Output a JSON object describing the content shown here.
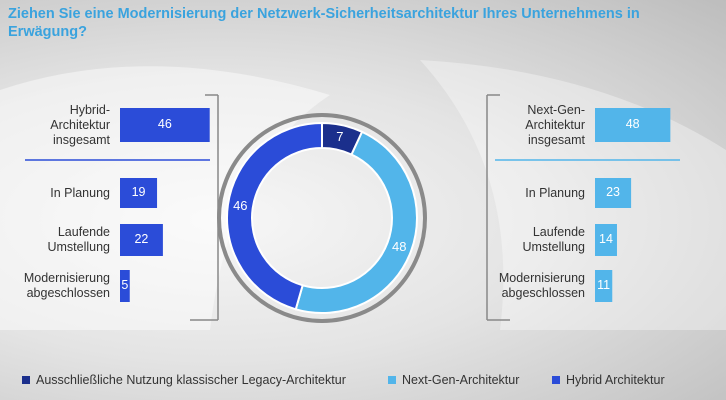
{
  "title": "Ziehen Sie eine Modernisierung der Netzwerk-Sicherheitsarchitektur Ihres Unternehmens in Erwägung?",
  "chart_data": [
    {
      "type": "pie",
      "categories": [
        "Ausschließliche Nutzung klassischer Legacy-Architektur",
        "Next-Gen-Architektur",
        "Hybrid Architektur"
      ],
      "values": [
        7,
        48,
        46
      ],
      "colors": [
        "#1b2f8c",
        "#52b5ea",
        "#2b4cd8"
      ]
    },
    {
      "type": "bar",
      "categories": [
        "Hybrid-\nArchitektur\ninsgesamt",
        "In Planung",
        "Laufende\nUmstellung",
        "Modernisierung\nabgeschlossen"
      ],
      "values": [
        46,
        19,
        22,
        5
      ],
      "color": "#2b4cd8"
    },
    {
      "type": "bar",
      "categories": [
        "Next-Gen-\nArchitektur\ninsgesamt",
        "In Planung",
        "Laufende\nUmstellung",
        "Modernisierung\nabgeschlossen"
      ],
      "values": [
        48,
        23,
        14,
        11
      ],
      "color": "#52b5ea"
    }
  ]
}
